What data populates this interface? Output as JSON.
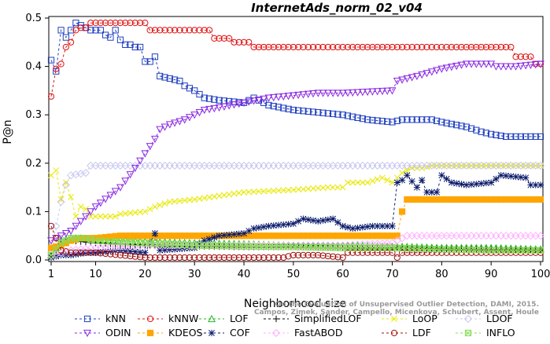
{
  "chart_data": {
    "type": "line",
    "title": "InternetAds_norm_02_v04",
    "xlabel": "Neighborhood size",
    "ylabel": "P@n",
    "xlim": [
      1,
      100
    ],
    "ylim": [
      0,
      0.5
    ],
    "xticks": [
      1,
      10,
      20,
      30,
      40,
      50,
      60,
      70,
      80,
      90,
      100
    ],
    "yticks": [
      0.0,
      0.1,
      0.2,
      0.3,
      0.4,
      0.5
    ],
    "grid": false,
    "legend_position": "bottom",
    "watermark": "Campos, Zimek, Sander, Campello, Micenkova, Schubert, Assent, Houle: On the Evaluation of Unsupervised Outlier Detection. DAMI, 2015.",
    "watermark_lines": [
      "On the Evaluation of Unsupervised Outlier Detection, DAMI, 2015.",
      "Campos, Zimek, Sander, Campello, Micenkova, Schubert, Assent, Houle"
    ],
    "series": [
      {
        "name": "kNN",
        "color": "#1f3fbf",
        "marker": "square",
        "keypoints": [
          [
            1,
            0.413
          ],
          [
            2,
            0.39
          ],
          [
            3,
            0.475
          ],
          [
            4,
            0.46
          ],
          [
            5,
            0.475
          ],
          [
            6,
            0.49
          ],
          [
            7,
            0.485
          ],
          [
            8,
            0.48
          ],
          [
            9,
            0.475
          ],
          [
            10,
            0.475
          ],
          [
            11,
            0.475
          ],
          [
            12,
            0.465
          ],
          [
            13,
            0.46
          ],
          [
            14,
            0.475
          ],
          [
            15,
            0.455
          ],
          [
            16,
            0.445
          ],
          [
            17,
            0.445
          ],
          [
            18,
            0.44
          ],
          [
            19,
            0.44
          ],
          [
            20,
            0.41
          ],
          [
            21,
            0.41
          ],
          [
            22,
            0.42
          ],
          [
            23,
            0.38
          ],
          [
            25,
            0.375
          ],
          [
            27,
            0.37
          ],
          [
            28,
            0.36
          ],
          [
            30,
            0.35
          ],
          [
            32,
            0.335
          ],
          [
            35,
            0.33
          ],
          [
            40,
            0.325
          ],
          [
            42,
            0.335
          ],
          [
            45,
            0.32
          ],
          [
            50,
            0.31
          ],
          [
            55,
            0.305
          ],
          [
            60,
            0.3
          ],
          [
            65,
            0.29
          ],
          [
            70,
            0.285
          ],
          [
            72,
            0.29
          ],
          [
            78,
            0.29
          ],
          [
            80,
            0.285
          ],
          [
            85,
            0.275
          ],
          [
            88,
            0.265
          ],
          [
            90,
            0.26
          ],
          [
            93,
            0.255
          ],
          [
            100,
            0.255
          ]
        ]
      },
      {
        "name": "kNNW",
        "color": "#e01010",
        "marker": "circle",
        "keypoints": [
          [
            1,
            0.338
          ],
          [
            2,
            0.395
          ],
          [
            3,
            0.405
          ],
          [
            4,
            0.44
          ],
          [
            5,
            0.45
          ],
          [
            6,
            0.475
          ],
          [
            7,
            0.48
          ],
          [
            8,
            0.48
          ],
          [
            9,
            0.49
          ],
          [
            20,
            0.49
          ],
          [
            21,
            0.475
          ],
          [
            33,
            0.475
          ],
          [
            34,
            0.458
          ],
          [
            37,
            0.458
          ],
          [
            38,
            0.45
          ],
          [
            41,
            0.45
          ],
          [
            42,
            0.44
          ],
          [
            94,
            0.44
          ],
          [
            95,
            0.42
          ],
          [
            98,
            0.42
          ],
          [
            99,
            0.405
          ],
          [
            100,
            0.405
          ]
        ]
      },
      {
        "name": "LOF",
        "color": "#22bb22",
        "marker": "triangle-up",
        "keypoints": [
          [
            1,
            0.01
          ],
          [
            2,
            0.025
          ],
          [
            3,
            0.04
          ],
          [
            5,
            0.045
          ],
          [
            7,
            0.045
          ],
          [
            10,
            0.042
          ],
          [
            15,
            0.04
          ],
          [
            20,
            0.038
          ],
          [
            30,
            0.035
          ],
          [
            40,
            0.033
          ],
          [
            50,
            0.03
          ],
          [
            60,
            0.03
          ],
          [
            70,
            0.028
          ],
          [
            80,
            0.025
          ],
          [
            90,
            0.025
          ],
          [
            100,
            0.022
          ]
        ]
      },
      {
        "name": "SimplifiedLOF",
        "color": "#000000",
        "marker": "plus",
        "keypoints": [
          [
            1,
            0.01
          ],
          [
            2,
            0.02
          ],
          [
            3,
            0.035
          ],
          [
            5,
            0.04
          ],
          [
            10,
            0.035
          ],
          [
            20,
            0.03
          ],
          [
            30,
            0.028
          ],
          [
            40,
            0.027
          ],
          [
            50,
            0.027
          ],
          [
            60,
            0.025
          ],
          [
            70,
            0.025
          ],
          [
            80,
            0.023
          ],
          [
            90,
            0.022
          ],
          [
            100,
            0.02
          ]
        ]
      },
      {
        "name": "LoOP",
        "color": "#e8e800",
        "marker": "x",
        "keypoints": [
          [
            1,
            0.175
          ],
          [
            2,
            0.185
          ],
          [
            3,
            0.125
          ],
          [
            4,
            0.16
          ],
          [
            5,
            0.13
          ],
          [
            6,
            0.09
          ],
          [
            7,
            0.11
          ],
          [
            8,
            0.105
          ],
          [
            9,
            0.09
          ],
          [
            14,
            0.09
          ],
          [
            15,
            0.095
          ],
          [
            20,
            0.1
          ],
          [
            22,
            0.11
          ],
          [
            25,
            0.12
          ],
          [
            30,
            0.125
          ],
          [
            40,
            0.14
          ],
          [
            50,
            0.145
          ],
          [
            57,
            0.15
          ],
          [
            60,
            0.15
          ],
          [
            61,
            0.16
          ],
          [
            65,
            0.16
          ],
          [
            68,
            0.17
          ],
          [
            70,
            0.16
          ],
          [
            72,
            0.18
          ],
          [
            74,
            0.19
          ],
          [
            76,
            0.19
          ],
          [
            78,
            0.195
          ],
          [
            100,
            0.195
          ]
        ]
      },
      {
        "name": "LDOF",
        "color": "#c8c8f0",
        "marker": "diamond",
        "keypoints": [
          [
            1,
            0.015
          ],
          [
            2,
            0.07
          ],
          [
            3,
            0.12
          ],
          [
            4,
            0.155
          ],
          [
            5,
            0.175
          ],
          [
            8,
            0.18
          ],
          [
            9,
            0.195
          ],
          [
            100,
            0.195
          ]
        ]
      },
      {
        "name": "ODIN",
        "color": "#8a2be2",
        "marker": "triangle-down",
        "keypoints": [
          [
            1,
            0.04
          ],
          [
            3,
            0.05
          ],
          [
            5,
            0.06
          ],
          [
            7,
            0.08
          ],
          [
            10,
            0.11
          ],
          [
            15,
            0.15
          ],
          [
            18,
            0.19
          ],
          [
            20,
            0.22
          ],
          [
            22,
            0.25
          ],
          [
            23,
            0.27
          ],
          [
            25,
            0.28
          ],
          [
            28,
            0.29
          ],
          [
            30,
            0.3
          ],
          [
            32,
            0.31
          ],
          [
            35,
            0.315
          ],
          [
            40,
            0.325
          ],
          [
            45,
            0.335
          ],
          [
            50,
            0.34
          ],
          [
            55,
            0.345
          ],
          [
            60,
            0.345
          ],
          [
            70,
            0.35
          ],
          [
            71,
            0.37
          ],
          [
            75,
            0.38
          ],
          [
            80,
            0.395
          ],
          [
            85,
            0.405
          ],
          [
            90,
            0.405
          ],
          [
            91,
            0.4
          ],
          [
            95,
            0.4
          ],
          [
            100,
            0.405
          ]
        ]
      },
      {
        "name": "KDEOS",
        "color": "#ffa500",
        "marker": "square-filled",
        "keypoints": [
          [
            1,
            0.025
          ],
          [
            3,
            0.03
          ],
          [
            5,
            0.04
          ],
          [
            7,
            0.045
          ],
          [
            10,
            0.045
          ],
          [
            15,
            0.05
          ],
          [
            20,
            0.05
          ],
          [
            30,
            0.05
          ],
          [
            40,
            0.05
          ],
          [
            50,
            0.05
          ],
          [
            60,
            0.05
          ],
          [
            70,
            0.05
          ],
          [
            71,
            0.05
          ],
          [
            72,
            0.1
          ],
          [
            73,
            0.125
          ],
          [
            100,
            0.125
          ]
        ]
      },
      {
        "name": "COF",
        "color": "#0a1a6a",
        "marker": "star",
        "keypoints": [
          [
            1,
            0.005
          ],
          [
            3,
            0.01
          ],
          [
            5,
            0.01
          ],
          [
            8,
            0.015
          ],
          [
            10,
            0.015
          ],
          [
            15,
            0.02
          ],
          [
            20,
            0.015
          ],
          [
            22,
            0.055
          ],
          [
            23,
            0.02
          ],
          [
            30,
            0.025
          ],
          [
            32,
            0.04
          ],
          [
            35,
            0.05
          ],
          [
            40,
            0.055
          ],
          [
            42,
            0.065
          ],
          [
            45,
            0.07
          ],
          [
            50,
            0.075
          ],
          [
            52,
            0.085
          ],
          [
            55,
            0.08
          ],
          [
            58,
            0.085
          ],
          [
            60,
            0.07
          ],
          [
            62,
            0.065
          ],
          [
            66,
            0.07
          ],
          [
            70,
            0.07
          ],
          [
            71,
            0.16
          ],
          [
            72,
            0.165
          ],
          [
            73,
            0.175
          ],
          [
            75,
            0.15
          ],
          [
            76,
            0.165
          ],
          [
            77,
            0.14
          ],
          [
            79,
            0.14
          ],
          [
            80,
            0.175
          ],
          [
            82,
            0.16
          ],
          [
            85,
            0.155
          ],
          [
            90,
            0.16
          ],
          [
            92,
            0.175
          ],
          [
            97,
            0.17
          ],
          [
            98,
            0.155
          ],
          [
            100,
            0.155
          ]
        ]
      },
      {
        "name": "FastABOD",
        "color": "#ffb0ff",
        "marker": "diamond",
        "keypoints": [
          [
            1,
            0.01
          ],
          [
            5,
            0.02
          ],
          [
            10,
            0.025
          ],
          [
            20,
            0.03
          ],
          [
            30,
            0.03
          ],
          [
            40,
            0.03
          ],
          [
            50,
            0.03
          ],
          [
            60,
            0.03
          ],
          [
            70,
            0.035
          ],
          [
            72,
            0.045
          ],
          [
            73,
            0.05
          ],
          [
            100,
            0.05
          ]
        ]
      },
      {
        "name": "LDF",
        "color": "#a01010",
        "marker": "circle",
        "keypoints": [
          [
            1,
            0.07
          ],
          [
            2,
            0.045
          ],
          [
            3,
            0.02
          ],
          [
            5,
            0.015
          ],
          [
            10,
            0.015
          ],
          [
            20,
            0.005
          ],
          [
            30,
            0.005
          ],
          [
            40,
            0.005
          ],
          [
            48,
            0.005
          ],
          [
            50,
            0.01
          ],
          [
            55,
            0.01
          ],
          [
            60,
            0.005
          ],
          [
            61,
            0.015
          ],
          [
            70,
            0.015
          ],
          [
            71,
            0.005
          ],
          [
            72,
            0.015
          ],
          [
            100,
            0.015
          ]
        ]
      },
      {
        "name": "INFLO",
        "color": "#88dd55",
        "marker": "square-x",
        "keypoints": [
          [
            1,
            0.01
          ],
          [
            3,
            0.035
          ],
          [
            5,
            0.045
          ],
          [
            8,
            0.045
          ],
          [
            10,
            0.04
          ],
          [
            20,
            0.035
          ],
          [
            30,
            0.03
          ],
          [
            40,
            0.028
          ],
          [
            50,
            0.027
          ],
          [
            60,
            0.025
          ],
          [
            70,
            0.025
          ],
          [
            80,
            0.022
          ],
          [
            90,
            0.02
          ],
          [
            100,
            0.02
          ]
        ]
      }
    ],
    "legend_layout": [
      [
        "kNN",
        "kNNW",
        "LOF",
        "SimplifiedLOF",
        "LoOP",
        "LDOF"
      ],
      [
        "ODIN",
        "KDEOS",
        "COF",
        "FastABOD",
        "LDF",
        "INFLO"
      ]
    ]
  }
}
